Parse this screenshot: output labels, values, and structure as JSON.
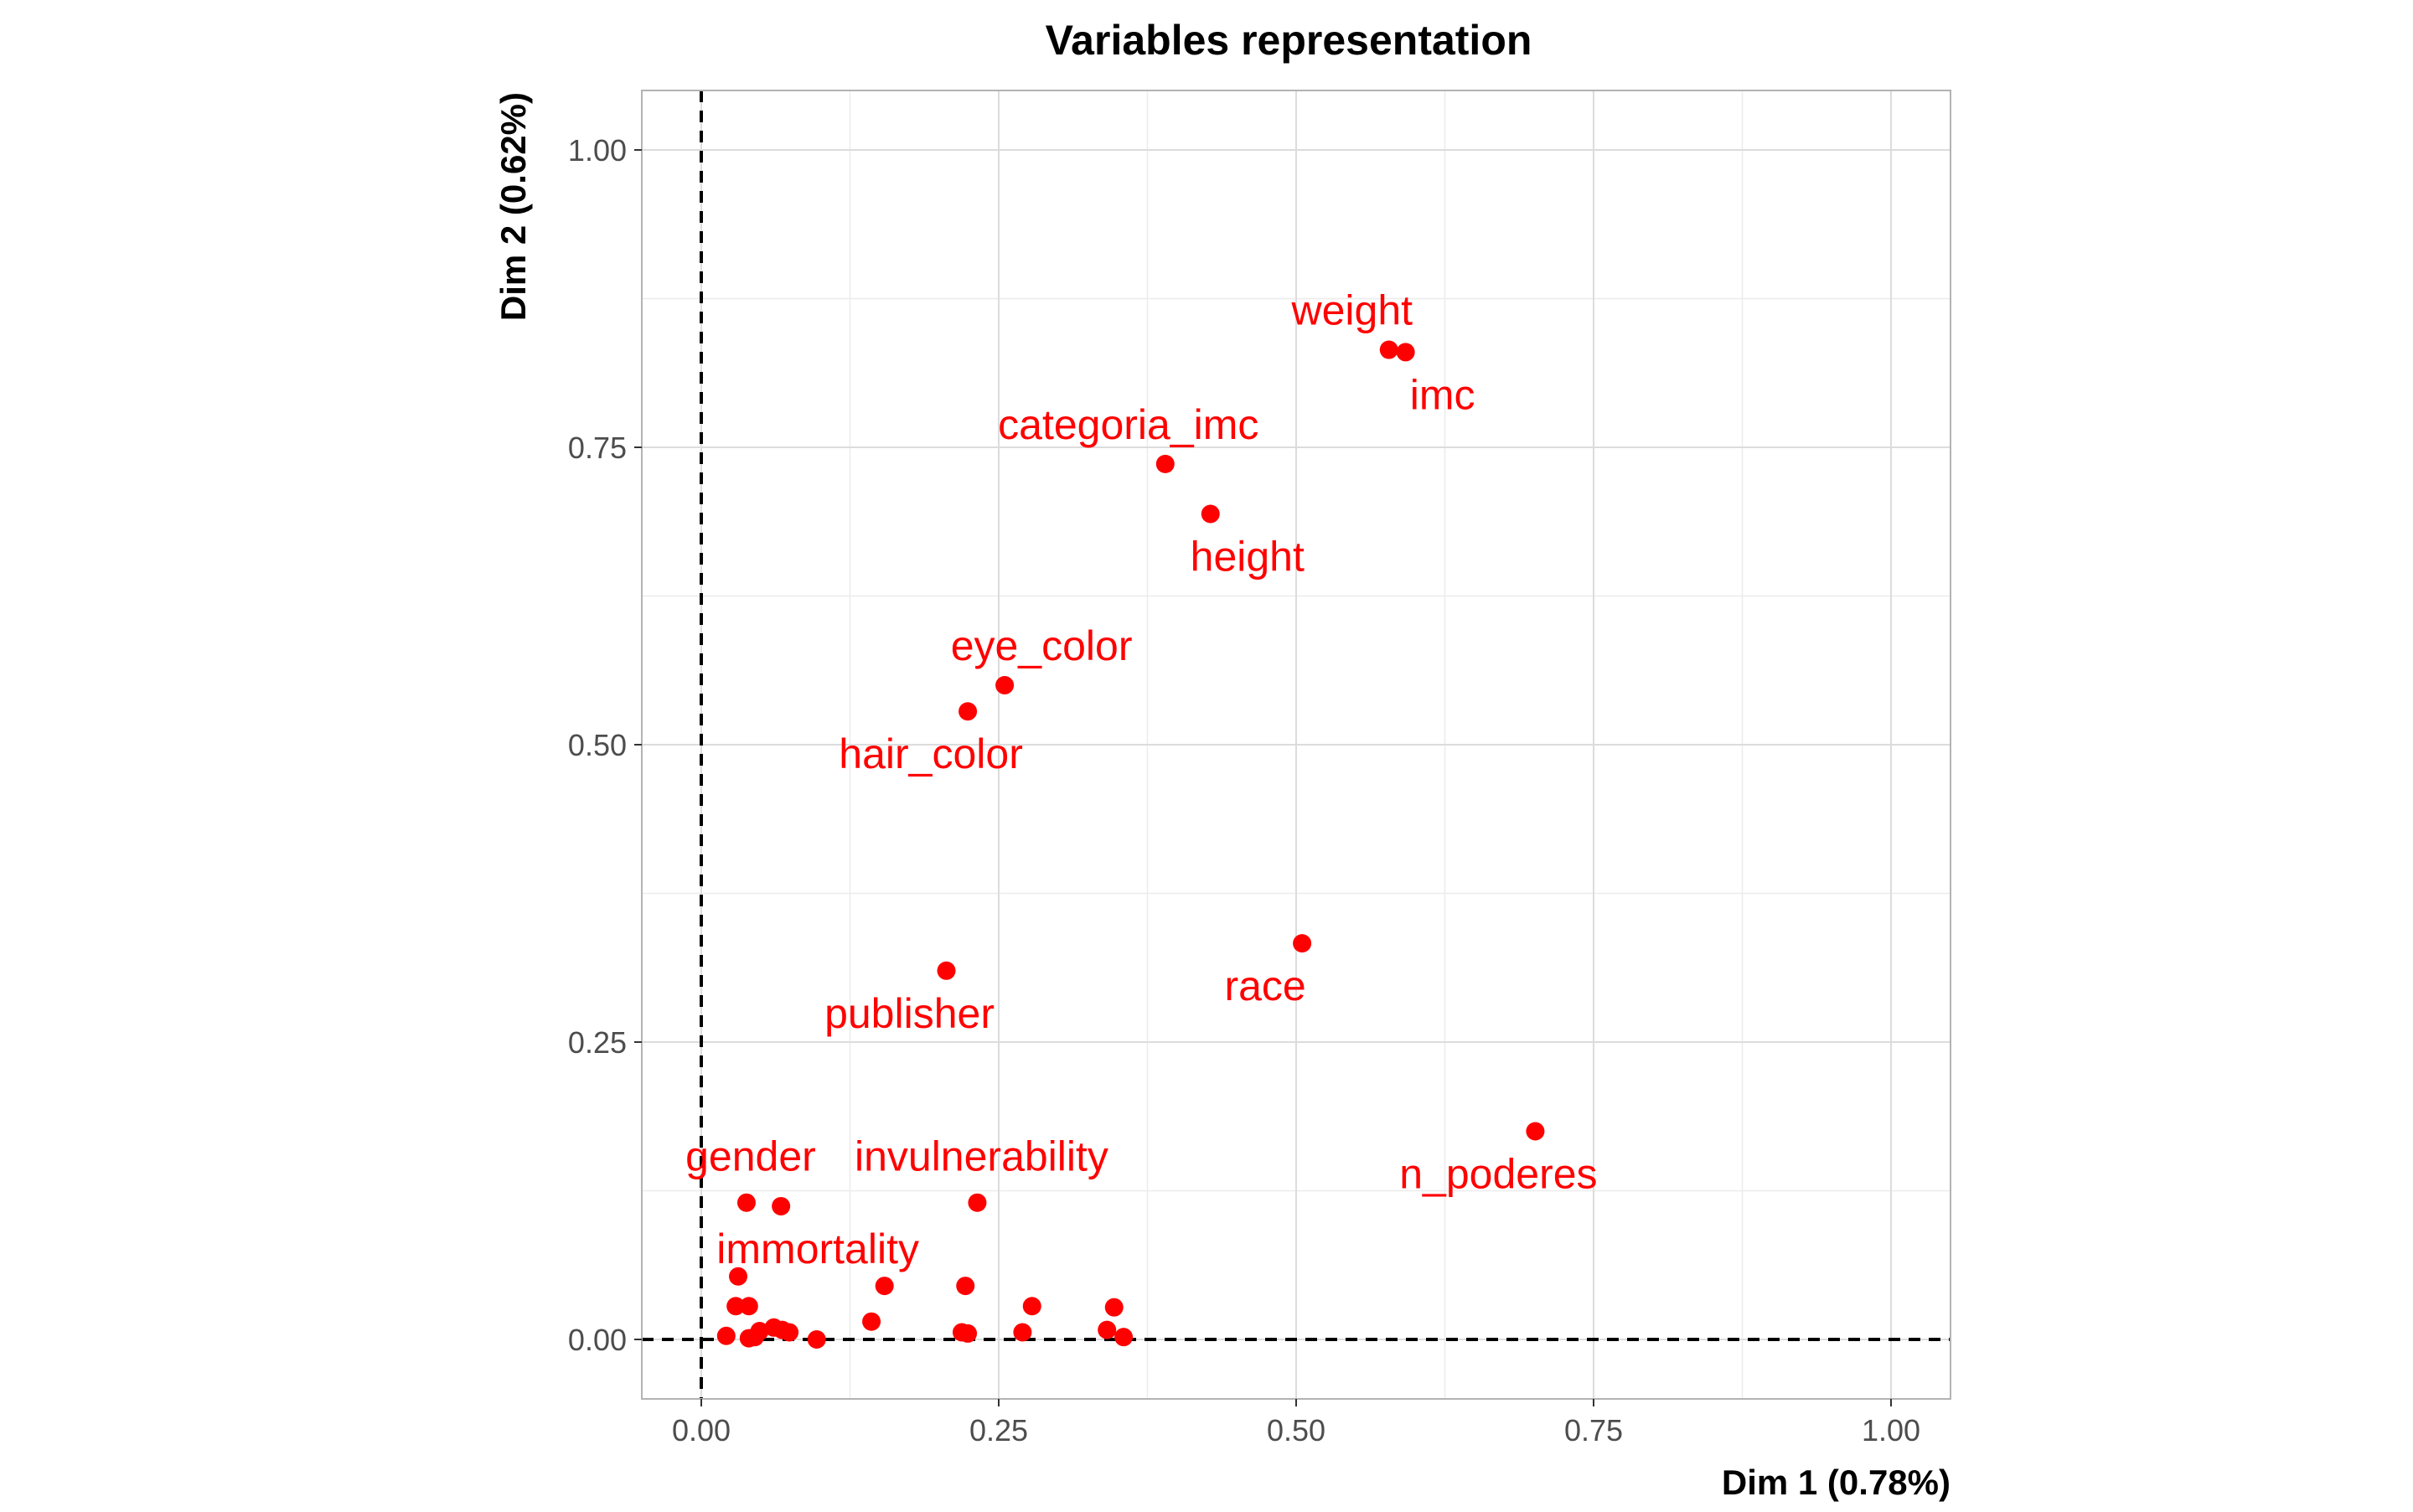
{
  "chart_data": {
    "type": "scatter",
    "title": "Variables representation",
    "xlabel": "Dim 1 (0.78%)",
    "ylabel": "Dim 2 (0.62%)",
    "xlim": [
      -0.05,
      1.05
    ],
    "ylim": [
      -0.05,
      1.05
    ],
    "x_ticks": [
      0.0,
      0.25,
      0.5,
      0.75,
      1.0
    ],
    "y_ticks": [
      0.0,
      0.25,
      0.5,
      0.75,
      1.0
    ],
    "x_tick_labels": [
      "0.00",
      "0.25",
      "0.50",
      "0.75",
      "1.00"
    ],
    "y_tick_labels": [
      "0.00",
      "0.25",
      "0.50",
      "0.75",
      "1.00"
    ],
    "grid": true,
    "reference_lines": {
      "x": 0,
      "y": 0,
      "style": "dashed"
    },
    "point_color": "#ff0000",
    "label_color": "#ff0000",
    "panel_border_color": "#b3b3b3",
    "grid_major_color": "#dcdcdc",
    "grid_minor_color": "#ececec",
    "points": [
      {
        "x": 0.578,
        "y": 0.832,
        "label": "weight",
        "label_pos": "above-left"
      },
      {
        "x": 0.592,
        "y": 0.83,
        "label": "imc",
        "label_pos": "below-right"
      },
      {
        "x": 0.39,
        "y": 0.736,
        "label": "categoria_imc",
        "label_pos": "above-left"
      },
      {
        "x": 0.428,
        "y": 0.694,
        "label": "height",
        "label_pos": "below"
      },
      {
        "x": 0.255,
        "y": 0.55,
        "label": "eye_color",
        "label_pos": "above-right"
      },
      {
        "x": 0.224,
        "y": 0.528,
        "label": "hair_color",
        "label_pos": "below-left"
      },
      {
        "x": 0.505,
        "y": 0.333,
        "label": "race",
        "label_pos": "below-left"
      },
      {
        "x": 0.206,
        "y": 0.31,
        "label": "publisher",
        "label_pos": "below-left"
      },
      {
        "x": 0.701,
        "y": 0.175,
        "label": "n_poderes",
        "label_pos": "below-left"
      },
      {
        "x": 0.038,
        "y": 0.115,
        "label": "gender",
        "label_pos": "above"
      },
      {
        "x": 0.232,
        "y": 0.115,
        "label": "invulnerability",
        "label_pos": "above"
      },
      {
        "x": 0.067,
        "y": 0.112,
        "label": "immortality",
        "label_pos": "below-right"
      },
      {
        "x": 0.031,
        "y": 0.053,
        "label": ""
      },
      {
        "x": 0.029,
        "y": 0.028,
        "label": ""
      },
      {
        "x": 0.04,
        "y": 0.028,
        "label": ""
      },
      {
        "x": 0.021,
        "y": 0.003,
        "label": ""
      },
      {
        "x": 0.04,
        "y": 0.001,
        "label": ""
      },
      {
        "x": 0.045,
        "y": 0.002,
        "label": ""
      },
      {
        "x": 0.049,
        "y": 0.007,
        "label": ""
      },
      {
        "x": 0.061,
        "y": 0.01,
        "label": ""
      },
      {
        "x": 0.068,
        "y": 0.008,
        "label": ""
      },
      {
        "x": 0.074,
        "y": 0.006,
        "label": ""
      },
      {
        "x": 0.097,
        "y": 0.0,
        "label": ""
      },
      {
        "x": 0.143,
        "y": 0.015,
        "label": ""
      },
      {
        "x": 0.154,
        "y": 0.045,
        "label": ""
      },
      {
        "x": 0.219,
        "y": 0.006,
        "label": ""
      },
      {
        "x": 0.222,
        "y": 0.045,
        "label": ""
      },
      {
        "x": 0.224,
        "y": 0.005,
        "label": ""
      },
      {
        "x": 0.27,
        "y": 0.006,
        "label": ""
      },
      {
        "x": 0.278,
        "y": 0.028,
        "label": ""
      },
      {
        "x": 0.341,
        "y": 0.008,
        "label": ""
      },
      {
        "x": 0.347,
        "y": 0.027,
        "label": ""
      },
      {
        "x": 0.355,
        "y": 0.002,
        "label": ""
      }
    ]
  }
}
